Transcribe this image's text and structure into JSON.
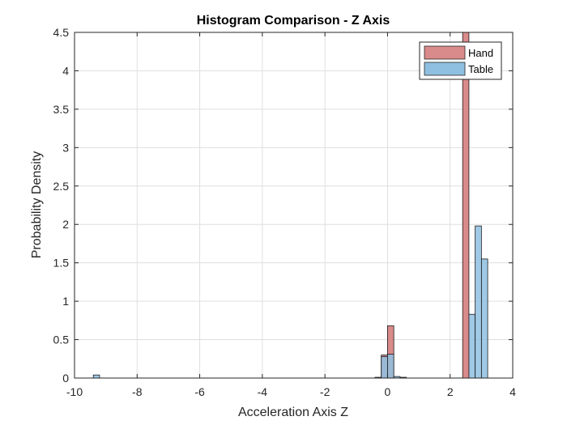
{
  "chart_data": {
    "type": "histogram",
    "title": "Histogram Comparison - Z Axis",
    "xlabel": "Acceleration Axis Z",
    "ylabel": "Probability Density",
    "xlim": [
      -10,
      4
    ],
    "ylim": [
      0,
      4.5
    ],
    "xticks": [
      -10,
      -8,
      -6,
      -4,
      -2,
      0,
      2,
      4
    ],
    "xtick_labels": [
      "-10",
      "-8",
      "-6",
      "-4",
      "-2",
      "0",
      "2",
      "4"
    ],
    "yticks": [
      0,
      0.5,
      1,
      1.5,
      2,
      2.5,
      3,
      3.5,
      4,
      4.5
    ],
    "ytick_labels": [
      "0",
      "0.5",
      "1",
      "1.5",
      "2",
      "2.5",
      "3",
      "3.5",
      "4",
      "4.5"
    ],
    "grid": true,
    "legend_position": "top-right",
    "series": [
      {
        "name": "Hand",
        "color": "#d98a8a",
        "bins": [
          {
            "x0": -0.2,
            "x1": 0.0,
            "value": 0.3
          },
          {
            "x0": 0.0,
            "x1": 0.2,
            "value": 0.68
          },
          {
            "x0": 2.4,
            "x1": 2.6,
            "value": 4.5
          }
        ]
      },
      {
        "name": "Table",
        "color": "#8fbfe0",
        "bins": [
          {
            "x0": -9.4,
            "x1": -9.2,
            "value": 0.04
          },
          {
            "x0": -0.4,
            "x1": -0.2,
            "value": 0.01
          },
          {
            "x0": -0.2,
            "x1": 0.0,
            "value": 0.28
          },
          {
            "x0": 0.0,
            "x1": 0.2,
            "value": 0.31
          },
          {
            "x0": 0.2,
            "x1": 0.4,
            "value": 0.02
          },
          {
            "x0": 0.4,
            "x1": 0.6,
            "value": 0.01
          },
          {
            "x0": 2.6,
            "x1": 2.8,
            "value": 0.83
          },
          {
            "x0": 2.8,
            "x1": 3.0,
            "value": 1.98
          },
          {
            "x0": 3.0,
            "x1": 3.2,
            "value": 1.55
          }
        ]
      }
    ]
  }
}
